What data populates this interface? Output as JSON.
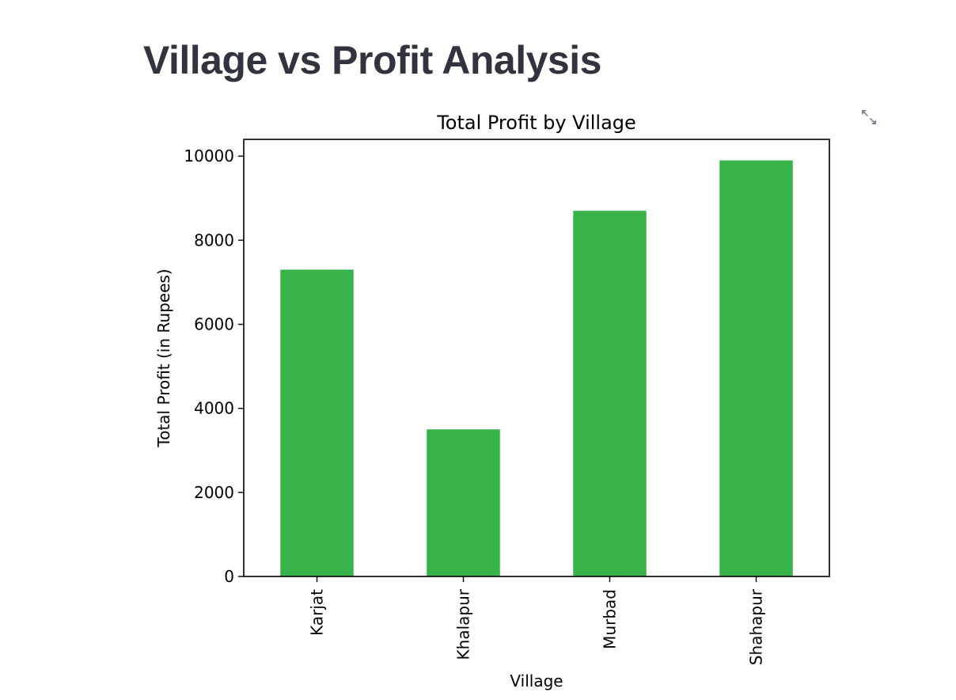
{
  "page": {
    "title": "Village vs Profit Analysis"
  },
  "toolbar": {
    "expand_icon": "fullscreen-expand-icon"
  },
  "colors": {
    "bar": "#37b34a",
    "axis": "#000000",
    "title_text": "#31333f",
    "icon": "#808495"
  },
  "chart_data": {
    "type": "bar",
    "title": "Total Profit by Village",
    "xlabel": "Village",
    "ylabel": "Total Profit (in Rupees)",
    "categories": [
      "Karjat",
      "Khalapur",
      "Murbad",
      "Shahapur"
    ],
    "values": [
      7300,
      3500,
      8700,
      9900
    ],
    "ylim": [
      0,
      10400
    ],
    "yticks": [
      0,
      2000,
      4000,
      6000,
      8000,
      10000
    ],
    "grid": false,
    "legend": "none",
    "x_tick_rotation": "vertical"
  }
}
